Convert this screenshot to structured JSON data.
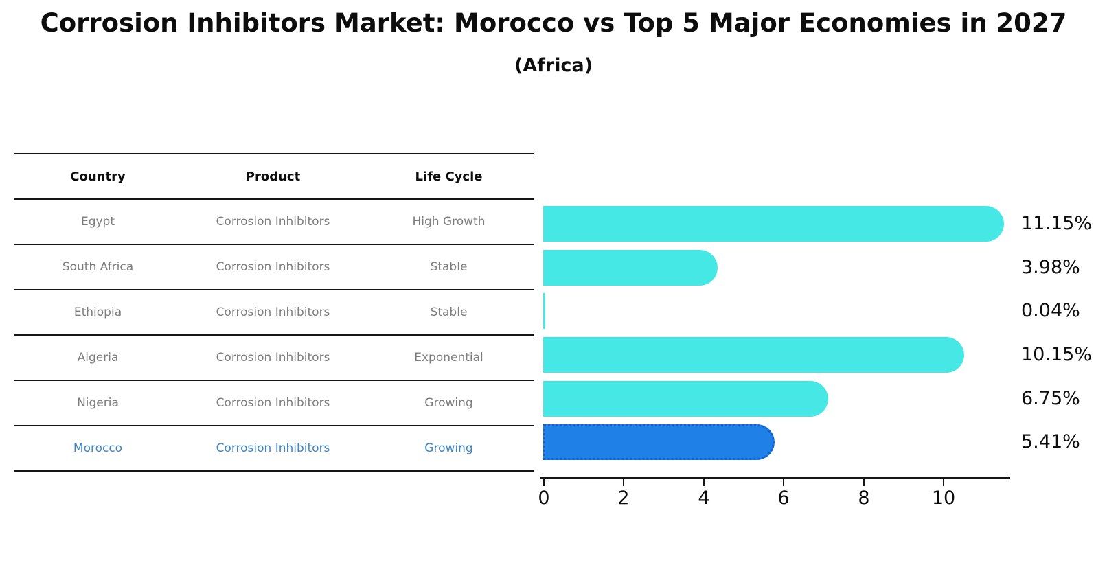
{
  "chart": {
    "title": "Corrosion Inhibitors Market: Morocco vs Top 5 Major Economies in 2027",
    "subtitle": "(Africa)"
  },
  "table": {
    "headers": [
      "Country",
      "Product",
      "Life Cycle"
    ],
    "rows": [
      {
        "country": "Egypt",
        "product": "Corrosion Inhibitors",
        "life_cycle": "High Growth",
        "highlight": false
      },
      {
        "country": "South Africa",
        "product": "Corrosion Inhibitors",
        "life_cycle": "Stable",
        "highlight": false
      },
      {
        "country": "Ethiopia",
        "product": "Corrosion Inhibitors",
        "life_cycle": "Stable",
        "highlight": false
      },
      {
        "country": "Algeria",
        "product": "Corrosion Inhibitors",
        "life_cycle": "Exponential",
        "highlight": false
      },
      {
        "country": "Nigeria",
        "product": "Corrosion Inhibitors",
        "life_cycle": "Growing",
        "highlight": false
      },
      {
        "country": "Morocco",
        "product": "Corrosion Inhibitors",
        "life_cycle": "Growing",
        "highlight": true
      }
    ]
  },
  "chart_data": {
    "type": "bar",
    "orientation": "horizontal",
    "title": "Corrosion Inhibitors Market: Morocco vs Top 5 Major Economies in 2027 (Africa)",
    "categories": [
      "Egypt",
      "South Africa",
      "Ethiopia",
      "Algeria",
      "Nigeria",
      "Morocco"
    ],
    "values": [
      11.15,
      3.98,
      0.04,
      10.15,
      6.75,
      5.41
    ],
    "value_labels": [
      "11.15%",
      "3.98%",
      "0.04%",
      "10.15%",
      "6.75%",
      "5.41%"
    ],
    "xlabel": "",
    "ylabel": "",
    "xticks": [
      0,
      2,
      4,
      6,
      8,
      10
    ],
    "xlim": [
      0,
      11.7
    ],
    "grid": false,
    "legend": "none",
    "highlight_category": "Morocco",
    "colors": {
      "bar": "#45e8e4",
      "highlight_bar": "#1f80e8",
      "highlight_border": "#1261cd",
      "row_text": "#7d7d7d",
      "highlight_text": "#3d85c6",
      "axis": "#151515"
    }
  }
}
